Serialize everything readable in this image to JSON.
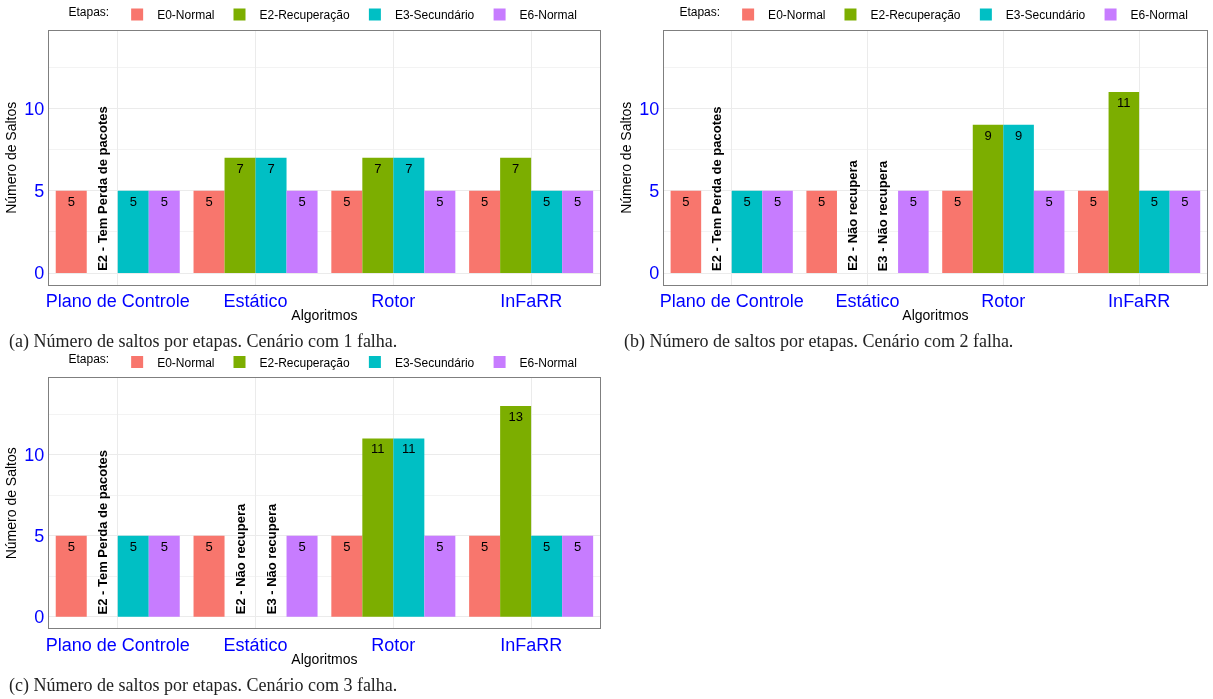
{
  "chart_data": [
    {
      "type": "bar",
      "xlabel": "Algoritmos",
      "ylabel": "Número de Saltos",
      "legend_title": "Etapas:",
      "legend": "top",
      "grid": true,
      "data_labels": true,
      "categories": [
        "Plano de Controle",
        "Estático",
        "Rotor",
        "InFaRR"
      ],
      "ylim": [
        -0.7,
        14.7
      ],
      "yticks": [
        0,
        5,
        10
      ],
      "series": [
        {
          "name": "E0-Normal",
          "color": "#f8766d",
          "values": [
            5,
            5,
            5,
            5
          ]
        },
        {
          "name": "E2-Recuperação",
          "color": "#7cae00",
          "values": [
            null,
            7,
            7,
            7
          ]
        },
        {
          "name": "E3-Secundário",
          "color": "#00bfc4",
          "values": [
            5,
            7,
            7,
            5
          ]
        },
        {
          "name": "E6-Normal",
          "color": "#c77cff",
          "values": [
            5,
            5,
            5,
            5
          ]
        }
      ],
      "annotations": [
        "E2 - Tem Perda de pacotes",
        "(a) Número de saltos por etapas. Cenário com 1 falha."
      ]
    },
    {
      "type": "bar",
      "xlabel": "Algoritmos",
      "ylabel": "Número de Saltos",
      "legend_title": "Etapas:",
      "legend": "top",
      "grid": true,
      "data_labels": true,
      "categories": [
        "Plano de Controle",
        "Estático",
        "Rotor",
        "InFaRR"
      ],
      "ylim": [
        -0.7,
        14.7
      ],
      "yticks": [
        0,
        5,
        10
      ],
      "series": [
        {
          "name": "E0-Normal",
          "color": "#f8766d",
          "values": [
            5,
            5,
            5,
            5
          ]
        },
        {
          "name": "E2-Recuperação",
          "color": "#7cae00",
          "values": [
            null,
            null,
            9,
            11
          ]
        },
        {
          "name": "E3-Secundário",
          "color": "#00bfc4",
          "values": [
            5,
            null,
            9,
            5
          ]
        },
        {
          "name": "E6-Normal",
          "color": "#c77cff",
          "values": [
            5,
            5,
            5,
            5
          ]
        }
      ],
      "annotations": [
        "E2 - Tem Perda de pacotes",
        "E2 - Não recupera",
        "E3 - Não recupera",
        "(b) Número de saltos por etapas. Cenário com 2 falha."
      ]
    },
    {
      "type": "bar",
      "xlabel": "Algoritmos",
      "ylabel": "Número de Saltos",
      "legend_title": "Etapas:",
      "legend": "top",
      "grid": true,
      "data_labels": true,
      "categories": [
        "Plano de Controle",
        "Estático",
        "Rotor",
        "InFaRR"
      ],
      "ylim": [
        -0.7,
        14.7
      ],
      "yticks": [
        0,
        5,
        10
      ],
      "series": [
        {
          "name": "E0-Normal",
          "color": "#f8766d",
          "values": [
            5,
            5,
            5,
            5
          ]
        },
        {
          "name": "E2-Recuperação",
          "color": "#7cae00",
          "values": [
            null,
            null,
            11,
            13
          ]
        },
        {
          "name": "E3-Secundário",
          "color": "#00bfc4",
          "values": [
            5,
            null,
            11,
            5
          ]
        },
        {
          "name": "E6-Normal",
          "color": "#c77cff",
          "values": [
            5,
            5,
            5,
            5
          ]
        }
      ],
      "annotations": [
        "E2 - Tem Perda de pacotes",
        "E2 - Não recupera",
        "E3 - Não recupera",
        "(c) Número de saltos por etapas. Cenário com 3 falha."
      ]
    }
  ]
}
